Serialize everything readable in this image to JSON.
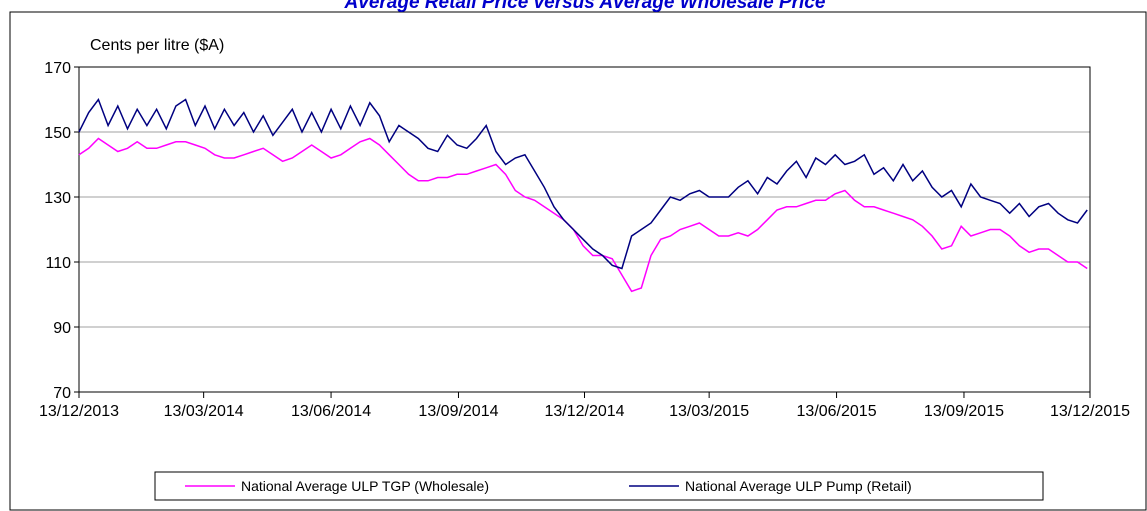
{
  "chart_data": {
    "type": "line",
    "title": "Average Retail Price versus Average Wholesale Price",
    "y_label": "Cents per litre ($A)",
    "x": [
      "13/12/2013",
      "20/12/2013",
      "27/12/2013",
      "03/01/2014",
      "10/01/2014",
      "17/01/2014",
      "24/01/2014",
      "31/01/2014",
      "07/02/2014",
      "14/02/2014",
      "21/02/2014",
      "28/02/2014",
      "07/03/2014",
      "14/03/2014",
      "21/03/2014",
      "28/03/2014",
      "04/04/2014",
      "11/04/2014",
      "18/04/2014",
      "25/04/2014",
      "02/05/2014",
      "09/05/2014",
      "16/05/2014",
      "23/05/2014",
      "30/05/2014",
      "06/06/2014",
      "13/06/2014",
      "20/06/2014",
      "27/06/2014",
      "04/07/2014",
      "11/07/2014",
      "18/07/2014",
      "25/07/2014",
      "01/08/2014",
      "08/08/2014",
      "15/08/2014",
      "22/08/2014",
      "29/08/2014",
      "05/09/2014",
      "12/09/2014",
      "19/09/2014",
      "26/09/2014",
      "03/10/2014",
      "10/10/2014",
      "17/10/2014",
      "24/10/2014",
      "31/10/2014",
      "07/11/2014",
      "14/11/2014",
      "21/11/2014",
      "28/11/2014",
      "05/12/2014",
      "12/12/2014",
      "19/12/2014",
      "26/12/2014",
      "02/01/2015",
      "09/01/2015",
      "16/01/2015",
      "23/01/2015",
      "30/01/2015",
      "06/02/2015",
      "13/02/2015",
      "20/02/2015",
      "27/02/2015",
      "06/03/2015",
      "13/03/2015",
      "20/03/2015",
      "27/03/2015",
      "03/04/2015",
      "10/04/2015",
      "17/04/2015",
      "24/04/2015",
      "01/05/2015",
      "08/05/2015",
      "15/05/2015",
      "22/05/2015",
      "29/05/2015",
      "05/06/2015",
      "12/06/2015",
      "19/06/2015",
      "26/06/2015",
      "03/07/2015",
      "10/07/2015",
      "17/07/2015",
      "24/07/2015",
      "31/07/2015",
      "07/08/2015",
      "14/08/2015",
      "21/08/2015",
      "28/08/2015",
      "04/09/2015",
      "11/09/2015",
      "18/09/2015",
      "25/09/2015",
      "02/10/2015",
      "09/10/2015",
      "16/10/2015",
      "23/10/2015",
      "30/10/2015",
      "06/11/2015",
      "13/11/2015",
      "20/11/2015",
      "27/11/2015",
      "04/12/2015",
      "11/12/2015"
    ],
    "series": [
      {
        "name": "National Average ULP TGP (Wholesale)",
        "color": "#ff00ff",
        "values": [
          143,
          145,
          148,
          146,
          144,
          145,
          147,
          145,
          145,
          146,
          147,
          147,
          146,
          145,
          143,
          142,
          142,
          143,
          144,
          145,
          143,
          141,
          142,
          144,
          146,
          144,
          142,
          143,
          145,
          147,
          148,
          146,
          143,
          140,
          137,
          135,
          135,
          136,
          136,
          137,
          137,
          138,
          139,
          140,
          137,
          132,
          130,
          129,
          127,
          125,
          123,
          120,
          115,
          112,
          112,
          111,
          106,
          101,
          102,
          112,
          117,
          118,
          120,
          121,
          122,
          120,
          118,
          118,
          119,
          118,
          120,
          123,
          126,
          127,
          127,
          128,
          129,
          129,
          131,
          132,
          129,
          127,
          127,
          126,
          125,
          124,
          123,
          121,
          118,
          114,
          115,
          121,
          118,
          119,
          120,
          120,
          118,
          115,
          113,
          114,
          114,
          112,
          110,
          110,
          108
        ]
      },
      {
        "name": "National Average ULP Pump (Retail)",
        "color": "#000080",
        "values": [
          150,
          156,
          160,
          152,
          158,
          151,
          157,
          152,
          157,
          151,
          158,
          160,
          152,
          158,
          151,
          157,
          152,
          156,
          150,
          155,
          149,
          153,
          157,
          150,
          156,
          150,
          157,
          151,
          158,
          152,
          159,
          155,
          147,
          152,
          150,
          148,
          145,
          144,
          149,
          146,
          145,
          148,
          152,
          144,
          140,
          142,
          143,
          138,
          133,
          127,
          123,
          120,
          117,
          114,
          112,
          109,
          108,
          118,
          120,
          122,
          126,
          130,
          129,
          131,
          132,
          130,
          130,
          130,
          133,
          135,
          131,
          136,
          134,
          138,
          141,
          136,
          142,
          140,
          143,
          140,
          141,
          143,
          137,
          139,
          135,
          140,
          135,
          138,
          133,
          130,
          132,
          127,
          134,
          130,
          129,
          128,
          125,
          128,
          124,
          127,
          128,
          125,
          123,
          122,
          126
        ]
      }
    ],
    "xlim": [
      "13/12/2013",
      "13/12/2015"
    ],
    "xticks": [
      "13/12/2013",
      "13/03/2014",
      "13/06/2014",
      "13/09/2014",
      "13/12/2014",
      "13/03/2015",
      "13/06/2015",
      "13/09/2015",
      "13/12/2015"
    ],
    "ylim": [
      70,
      170
    ],
    "yticks": [
      70,
      90,
      110,
      130,
      150,
      170
    ],
    "grid": true,
    "legend": "bottom"
  }
}
